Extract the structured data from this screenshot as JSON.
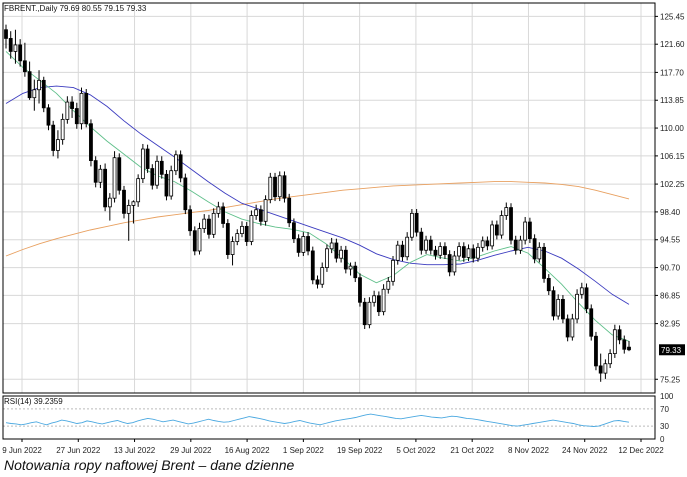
{
  "header_text": "FBRENT.,Daily  79.69 80.55 79.15 79.33",
  "rsi_label": "RSI(14) 39.2359",
  "caption": "Notowania ropy naftowej Brent – dane dzienne",
  "colors": {
    "ma_fast": "#5fbf8a",
    "ma_mid": "#3b3bbf",
    "ma_slow": "#e8a060",
    "rsi": "#4aa8e0",
    "candle": "#000000",
    "grid": "#d8d8d8"
  },
  "chart_data": [
    {
      "type": "candlestick",
      "symbol": "FBRENT.",
      "timeframe": "Daily",
      "grid": true,
      "ylim": [
        73.35,
        127.3
      ],
      "y_ticks": [
        "125.45",
        "121.60",
        "117.70",
        "113.85",
        "110.00",
        "106.15",
        "102.25",
        "98.40",
        "94.55",
        "90.70",
        "86.85",
        "82.95",
        "79.33",
        "75.25"
      ],
      "last_price": "79.33",
      "x_ticks": [
        "9 Jun 2022",
        "27 Jun 2022",
        "13 Jul 2022",
        "29 Jul 2022",
        "16 Aug 2022",
        "1 Sep 2022",
        "19 Sep 2022",
        "5 Oct 2022",
        "21 Oct 2022",
        "8 Nov 2022",
        "24 Nov 2022",
        "12 Dec 2022"
      ],
      "overlays": {
        "ma_fast": {
          "start": "9 Jun 2022",
          "step": "5 sessions",
          "values": [
            120.6,
            118.4,
            116.6,
            114.8,
            112.4,
            110.2,
            108.2,
            106.4,
            104.6,
            103.4,
            102.6,
            101.3,
            99.8,
            98.4,
            97.4,
            96.8,
            96.3,
            96.0,
            95.5,
            94.0,
            92.0,
            89.8,
            88.6,
            89.6,
            91.4,
            92.5,
            92.0,
            91.6,
            92.2,
            93.0,
            93.6,
            92.7,
            90.6,
            88.4,
            85.8,
            83.4,
            81.4,
            80.5
          ]
        },
        "ma_mid": {
          "start": "9 Jun 2022",
          "step": "5 sessions",
          "values": [
            113.4,
            114.8,
            115.6,
            115.8,
            115.6,
            114.6,
            113.0,
            111.0,
            109.2,
            107.6,
            106.0,
            104.3,
            102.6,
            101.0,
            99.6,
            98.8,
            98.0,
            97.2,
            96.4,
            95.6,
            94.8,
            93.8,
            92.6,
            91.8,
            91.3,
            91.1,
            91.1,
            91.2,
            91.7,
            92.4,
            93.0,
            93.5,
            93.0,
            92.0,
            90.5,
            88.8,
            87.0,
            85.6
          ]
        },
        "ma_slow": {
          "start": "9 Jun 2022",
          "step": "5 sessions",
          "values": [
            92.3,
            93.2,
            94.0,
            94.7,
            95.3,
            95.9,
            96.4,
            96.9,
            97.3,
            97.7,
            98.0,
            98.3,
            98.6,
            99.0,
            99.4,
            99.8,
            100.2,
            100.5,
            100.8,
            101.1,
            101.4,
            101.6,
            101.8,
            102.0,
            102.1,
            102.2,
            102.3,
            102.4,
            102.5,
            102.6,
            102.6,
            102.5,
            102.4,
            102.2,
            101.9,
            101.4,
            100.8,
            100.2
          ]
        }
      },
      "candles": [
        {
          "o": 123.6,
          "h": 124.3,
          "l": 121.0,
          "c": 122.4
        },
        {
          "o": 122.4,
          "h": 123.4,
          "l": 119.6,
          "c": 120.6
        },
        {
          "o": 120.6,
          "h": 123.6,
          "l": 118.9,
          "c": 121.5
        },
        {
          "o": 121.5,
          "h": 122.3,
          "l": 118.5,
          "c": 119.3
        },
        {
          "o": 119.3,
          "h": 121.8,
          "l": 117.1,
          "c": 117.8
        },
        {
          "o": 117.8,
          "h": 119.2,
          "l": 113.9,
          "c": 114.2
        },
        {
          "o": 114.2,
          "h": 116.7,
          "l": 112.4,
          "c": 115.3
        },
        {
          "o": 115.3,
          "h": 118.0,
          "l": 113.4,
          "c": 116.6
        },
        {
          "o": 116.6,
          "h": 117.1,
          "l": 112.2,
          "c": 112.8
        },
        {
          "o": 112.8,
          "h": 113.3,
          "l": 109.7,
          "c": 110.4
        },
        {
          "o": 110.4,
          "h": 111.0,
          "l": 106.1,
          "c": 106.9
        },
        {
          "o": 106.9,
          "h": 109.7,
          "l": 105.8,
          "c": 108.4
        },
        {
          "o": 108.4,
          "h": 112.0,
          "l": 107.7,
          "c": 111.2
        },
        {
          "o": 111.2,
          "h": 114.4,
          "l": 110.6,
          "c": 113.6
        },
        {
          "o": 113.6,
          "h": 114.4,
          "l": 111.4,
          "c": 112.7
        },
        {
          "o": 112.7,
          "h": 113.5,
          "l": 109.9,
          "c": 110.6
        },
        {
          "o": 110.6,
          "h": 115.6,
          "l": 109.8,
          "c": 114.8
        },
        {
          "o": 114.8,
          "h": 115.4,
          "l": 110.1,
          "c": 110.6
        },
        {
          "o": 110.6,
          "h": 111.2,
          "l": 104.7,
          "c": 105.5
        },
        {
          "o": 105.5,
          "h": 106.1,
          "l": 101.8,
          "c": 102.5
        },
        {
          "o": 102.5,
          "h": 104.9,
          "l": 101.7,
          "c": 104.3
        },
        {
          "o": 104.3,
          "h": 105.1,
          "l": 98.5,
          "c": 99.1
        },
        {
          "o": 99.1,
          "h": 101.0,
          "l": 97.2,
          "c": 100.3
        },
        {
          "o": 100.3,
          "h": 106.8,
          "l": 99.7,
          "c": 105.9
        },
        {
          "o": 105.9,
          "h": 106.5,
          "l": 100.8,
          "c": 101.4
        },
        {
          "o": 101.4,
          "h": 102.0,
          "l": 97.5,
          "c": 98.2
        },
        {
          "o": 98.2,
          "h": 100.1,
          "l": 94.4,
          "c": 99.3
        },
        {
          "o": 99.3,
          "h": 100.0,
          "l": 96.8,
          "c": 99.8
        },
        {
          "o": 99.8,
          "h": 103.6,
          "l": 99.1,
          "c": 103.0
        },
        {
          "o": 103.0,
          "h": 107.8,
          "l": 102.4,
          "c": 107.1
        },
        {
          "o": 107.1,
          "h": 107.7,
          "l": 103.8,
          "c": 104.4
        },
        {
          "o": 104.4,
          "h": 105.0,
          "l": 101.5,
          "c": 102.1
        },
        {
          "o": 102.1,
          "h": 106.2,
          "l": 101.6,
          "c": 105.4
        },
        {
          "o": 105.4,
          "h": 106.1,
          "l": 103.0,
          "c": 103.6
        },
        {
          "o": 103.6,
          "h": 104.2,
          "l": 100.0,
          "c": 100.6
        },
        {
          "o": 100.6,
          "h": 104.8,
          "l": 100.1,
          "c": 104.1
        },
        {
          "o": 104.1,
          "h": 106.9,
          "l": 103.5,
          "c": 106.3
        },
        {
          "o": 106.3,
          "h": 106.9,
          "l": 102.5,
          "c": 103.1
        },
        {
          "o": 103.1,
          "h": 103.7,
          "l": 98.1,
          "c": 98.7
        },
        {
          "o": 98.7,
          "h": 99.3,
          "l": 95.1,
          "c": 95.8
        },
        {
          "o": 95.8,
          "h": 96.4,
          "l": 92.4,
          "c": 93.0
        },
        {
          "o": 93.0,
          "h": 96.9,
          "l": 92.5,
          "c": 96.1
        },
        {
          "o": 96.1,
          "h": 98.1,
          "l": 95.5,
          "c": 97.4
        },
        {
          "o": 97.4,
          "h": 98.0,
          "l": 94.7,
          "c": 95.3
        },
        {
          "o": 95.3,
          "h": 98.9,
          "l": 94.8,
          "c": 98.2
        },
        {
          "o": 98.2,
          "h": 99.8,
          "l": 97.6,
          "c": 99.1
        },
        {
          "o": 99.1,
          "h": 99.7,
          "l": 96.2,
          "c": 96.8
        },
        {
          "o": 96.8,
          "h": 97.4,
          "l": 91.9,
          "c": 92.5
        },
        {
          "o": 92.5,
          "h": 95.0,
          "l": 91.0,
          "c": 94.3
        },
        {
          "o": 94.3,
          "h": 96.0,
          "l": 93.8,
          "c": 95.4
        },
        {
          "o": 95.4,
          "h": 97.1,
          "l": 94.9,
          "c": 96.4
        },
        {
          "o": 96.4,
          "h": 97.0,
          "l": 93.7,
          "c": 94.3
        },
        {
          "o": 94.3,
          "h": 98.6,
          "l": 93.8,
          "c": 97.9
        },
        {
          "o": 97.9,
          "h": 99.4,
          "l": 97.3,
          "c": 98.7
        },
        {
          "o": 98.7,
          "h": 99.3,
          "l": 96.5,
          "c": 97.1
        },
        {
          "o": 97.1,
          "h": 100.7,
          "l": 96.5,
          "c": 100.1
        },
        {
          "o": 100.1,
          "h": 103.8,
          "l": 99.6,
          "c": 103.2
        },
        {
          "o": 103.2,
          "h": 103.8,
          "l": 99.9,
          "c": 100.5
        },
        {
          "o": 100.5,
          "h": 104.0,
          "l": 99.9,
          "c": 103.4
        },
        {
          "o": 103.4,
          "h": 104.0,
          "l": 99.7,
          "c": 100.3
        },
        {
          "o": 100.3,
          "h": 100.9,
          "l": 96.3,
          "c": 96.9
        },
        {
          "o": 96.9,
          "h": 97.5,
          "l": 94.1,
          "c": 94.7
        },
        {
          "o": 94.7,
          "h": 95.3,
          "l": 92.2,
          "c": 92.8
        },
        {
          "o": 92.8,
          "h": 95.6,
          "l": 92.3,
          "c": 95.0
        },
        {
          "o": 95.0,
          "h": 95.6,
          "l": 92.4,
          "c": 93.0
        },
        {
          "o": 93.0,
          "h": 93.6,
          "l": 88.4,
          "c": 89.0
        },
        {
          "o": 89.0,
          "h": 89.6,
          "l": 87.8,
          "c": 88.4
        },
        {
          "o": 88.4,
          "h": 91.4,
          "l": 87.9,
          "c": 90.7
        },
        {
          "o": 90.7,
          "h": 93.9,
          "l": 90.1,
          "c": 93.3
        },
        {
          "o": 93.3,
          "h": 94.8,
          "l": 92.7,
          "c": 94.1
        },
        {
          "o": 94.1,
          "h": 94.7,
          "l": 91.4,
          "c": 92.0
        },
        {
          "o": 92.0,
          "h": 93.7,
          "l": 91.4,
          "c": 93.1
        },
        {
          "o": 93.1,
          "h": 93.7,
          "l": 89.9,
          "c": 90.5
        },
        {
          "o": 90.5,
          "h": 91.4,
          "l": 89.6,
          "c": 90.9
        },
        {
          "o": 90.9,
          "h": 91.5,
          "l": 88.7,
          "c": 89.3
        },
        {
          "o": 89.3,
          "h": 89.9,
          "l": 85.3,
          "c": 85.9
        },
        {
          "o": 85.9,
          "h": 86.5,
          "l": 82.2,
          "c": 82.8
        },
        {
          "o": 82.8,
          "h": 86.6,
          "l": 82.3,
          "c": 85.9
        },
        {
          "o": 85.9,
          "h": 87.5,
          "l": 85.3,
          "c": 86.8
        },
        {
          "o": 86.8,
          "h": 87.4,
          "l": 84.0,
          "c": 84.6
        },
        {
          "o": 84.6,
          "h": 88.4,
          "l": 84.1,
          "c": 87.7
        },
        {
          "o": 87.7,
          "h": 89.4,
          "l": 87.1,
          "c": 88.8
        },
        {
          "o": 88.8,
          "h": 92.3,
          "l": 88.2,
          "c": 91.7
        },
        {
          "o": 91.7,
          "h": 94.4,
          "l": 91.1,
          "c": 93.8
        },
        {
          "o": 93.8,
          "h": 94.4,
          "l": 91.6,
          "c": 92.2
        },
        {
          "o": 92.2,
          "h": 95.6,
          "l": 91.7,
          "c": 94.9
        },
        {
          "o": 94.9,
          "h": 98.8,
          "l": 94.4,
          "c": 98.2
        },
        {
          "o": 98.2,
          "h": 98.8,
          "l": 95.0,
          "c": 95.6
        },
        {
          "o": 95.6,
          "h": 96.2,
          "l": 92.5,
          "c": 93.1
        },
        {
          "o": 93.1,
          "h": 95.1,
          "l": 92.6,
          "c": 94.5
        },
        {
          "o": 94.5,
          "h": 95.1,
          "l": 92.5,
          "c": 93.1
        },
        {
          "o": 93.1,
          "h": 93.7,
          "l": 91.8,
          "c": 92.4
        },
        {
          "o": 92.4,
          "h": 94.2,
          "l": 91.9,
          "c": 93.6
        },
        {
          "o": 93.6,
          "h": 94.2,
          "l": 91.9,
          "c": 92.5
        },
        {
          "o": 92.5,
          "h": 93.1,
          "l": 89.5,
          "c": 90.1
        },
        {
          "o": 90.1,
          "h": 93.0,
          "l": 89.6,
          "c": 92.3
        },
        {
          "o": 92.3,
          "h": 94.2,
          "l": 91.7,
          "c": 93.6
        },
        {
          "o": 93.6,
          "h": 94.2,
          "l": 91.5,
          "c": 92.1
        },
        {
          "o": 92.1,
          "h": 93.9,
          "l": 91.6,
          "c": 93.3
        },
        {
          "o": 93.3,
          "h": 93.9,
          "l": 91.4,
          "c": 92.0
        },
        {
          "o": 92.0,
          "h": 94.1,
          "l": 91.5,
          "c": 93.5
        },
        {
          "o": 93.5,
          "h": 95.0,
          "l": 92.9,
          "c": 94.4
        },
        {
          "o": 94.4,
          "h": 95.0,
          "l": 93.1,
          "c": 93.7
        },
        {
          "o": 93.7,
          "h": 97.2,
          "l": 93.2,
          "c": 96.6
        },
        {
          "o": 96.6,
          "h": 97.2,
          "l": 94.6,
          "c": 95.2
        },
        {
          "o": 95.2,
          "h": 98.6,
          "l": 94.7,
          "c": 97.9
        },
        {
          "o": 97.9,
          "h": 99.7,
          "l": 97.3,
          "c": 99.0
        },
        {
          "o": 99.0,
          "h": 99.6,
          "l": 93.9,
          "c": 94.5
        },
        {
          "o": 94.5,
          "h": 95.1,
          "l": 92.5,
          "c": 93.1
        },
        {
          "o": 93.1,
          "h": 95.1,
          "l": 92.6,
          "c": 94.5
        },
        {
          "o": 94.5,
          "h": 97.7,
          "l": 93.9,
          "c": 97.0
        },
        {
          "o": 97.0,
          "h": 97.6,
          "l": 94.1,
          "c": 94.7
        },
        {
          "o": 94.7,
          "h": 95.3,
          "l": 91.3,
          "c": 91.9
        },
        {
          "o": 91.9,
          "h": 94.2,
          "l": 91.4,
          "c": 93.5
        },
        {
          "o": 93.5,
          "h": 94.1,
          "l": 88.6,
          "c": 89.2
        },
        {
          "o": 89.2,
          "h": 89.8,
          "l": 86.9,
          "c": 87.5
        },
        {
          "o": 87.5,
          "h": 88.1,
          "l": 83.4,
          "c": 84.0
        },
        {
          "o": 84.0,
          "h": 87.0,
          "l": 83.5,
          "c": 86.3
        },
        {
          "o": 86.3,
          "h": 86.9,
          "l": 83.0,
          "c": 83.6
        },
        {
          "o": 83.6,
          "h": 84.2,
          "l": 80.5,
          "c": 81.1
        },
        {
          "o": 81.1,
          "h": 84.3,
          "l": 80.6,
          "c": 83.6
        },
        {
          "o": 83.6,
          "h": 87.7,
          "l": 83.0,
          "c": 87.0
        },
        {
          "o": 87.0,
          "h": 88.6,
          "l": 86.4,
          "c": 87.9
        },
        {
          "o": 87.9,
          "h": 88.5,
          "l": 84.4,
          "c": 85.0
        },
        {
          "o": 85.0,
          "h": 85.6,
          "l": 80.6,
          "c": 81.2
        },
        {
          "o": 81.2,
          "h": 81.8,
          "l": 76.5,
          "c": 77.1
        },
        {
          "o": 77.1,
          "h": 78.8,
          "l": 74.9,
          "c": 76.1
        },
        {
          "o": 76.1,
          "h": 78.0,
          "l": 75.3,
          "c": 77.4
        },
        {
          "o": 77.4,
          "h": 79.4,
          "l": 76.8,
          "c": 78.8
        },
        {
          "o": 78.8,
          "h": 82.8,
          "l": 78.2,
          "c": 82.1
        },
        {
          "o": 82.1,
          "h": 82.7,
          "l": 80.1,
          "c": 80.7
        },
        {
          "o": 80.7,
          "h": 81.3,
          "l": 78.8,
          "c": 79.4
        },
        {
          "o": 79.69,
          "h": 80.55,
          "l": 79.15,
          "c": 79.33
        }
      ]
    },
    {
      "type": "line",
      "indicator": "RSI(14)",
      "value": "39.2359",
      "ylim": [
        0,
        100
      ],
      "y_ticks": [
        "100",
        "70",
        "30",
        "0"
      ],
      "levels": [
        70,
        30
      ],
      "values": [
        38,
        36,
        35,
        33,
        35,
        38,
        40,
        36,
        33,
        37,
        40,
        44,
        42,
        39,
        36,
        38,
        42,
        40,
        37,
        35,
        38,
        41,
        43,
        39,
        36,
        38,
        42,
        45,
        48,
        46,
        43,
        40,
        42,
        44,
        41,
        38,
        35,
        37,
        40,
        43,
        46,
        43,
        41,
        39,
        40,
        43,
        46,
        49,
        52,
        50,
        48,
        45,
        42,
        40,
        38,
        36,
        38,
        41,
        43,
        40,
        37,
        35,
        33,
        36,
        39,
        42,
        44,
        46,
        48,
        50,
        53,
        56,
        58,
        56,
        54,
        52,
        50,
        48,
        47,
        49,
        51,
        53,
        55,
        53,
        51,
        50,
        49,
        51,
        53,
        52,
        50,
        48,
        47,
        45,
        43,
        41,
        39,
        37,
        35,
        33,
        31,
        30,
        32,
        34,
        36,
        38,
        40,
        42,
        44,
        42,
        40,
        38,
        36,
        33,
        31,
        30,
        29,
        30,
        34,
        38,
        42,
        43,
        41,
        39
      ]
    }
  ]
}
